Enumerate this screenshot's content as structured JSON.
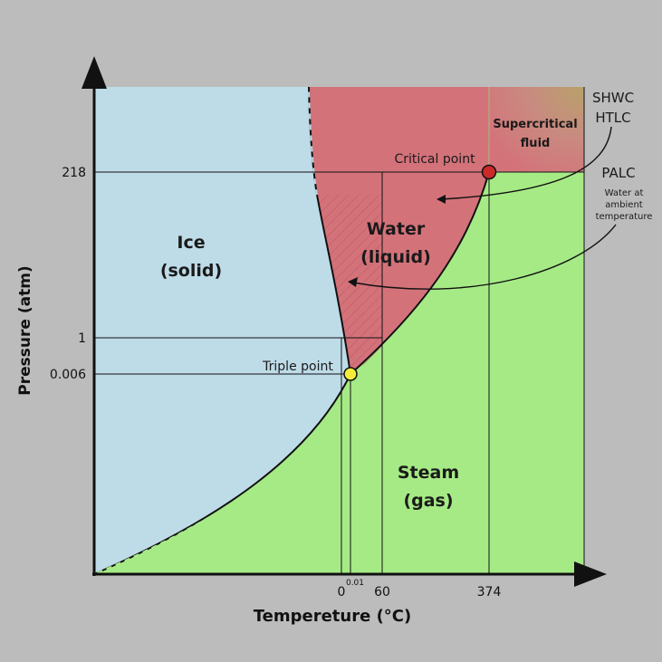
{
  "diagram": {
    "type": "phase-diagram",
    "axes": {
      "y_label": "Pressure (atm)",
      "x_label": "Tempereture (°C)",
      "y_ticks": [
        "218",
        "1",
        "0.006"
      ],
      "x_ticks": [
        "0",
        "0.01",
        "60",
        "374"
      ]
    },
    "regions": {
      "ice": {
        "line1": "Ice",
        "line2": "(solid)"
      },
      "water": {
        "line1": "Water",
        "line2": "(liquid)"
      },
      "steam": {
        "line1": "Steam",
        "line2": "(gas)"
      },
      "supercritical": {
        "line1": "Supercritical",
        "line2": "fluid"
      }
    },
    "points": {
      "critical": "Critical point",
      "triple": "Triple point"
    },
    "annotations": {
      "shwc": "SHWC",
      "htlc": "HTLC",
      "palc": "PALC",
      "ambient_line1": "Water at",
      "ambient_line2": "ambient",
      "ambient_line3": "temperature"
    },
    "colors": {
      "background": "#bcbcbc",
      "ice": "#bedbe8",
      "water": "#d4727a",
      "steam": "#a6ea86",
      "supercritical": "#c49a7a",
      "critical_point": "#cc2a2a",
      "triple_point": "#f4ee3a"
    }
  }
}
